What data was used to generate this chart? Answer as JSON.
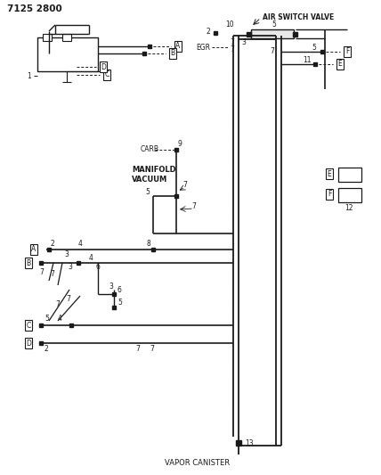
{
  "bg_color": "#ffffff",
  "line_color": "#1a1a1a",
  "text_color": "#1a1a1a",
  "fig_width": 4.28,
  "fig_height": 5.33,
  "part_num": "7125 2800",
  "labels": {
    "air_switch_valve": "AIR SWITCH VALVE",
    "egr": "EGR",
    "carb": "CARB",
    "manifold_vacuum": "MANIFOLD\nVACUUM",
    "vapor_canister": "VAPOR CANISTER"
  }
}
